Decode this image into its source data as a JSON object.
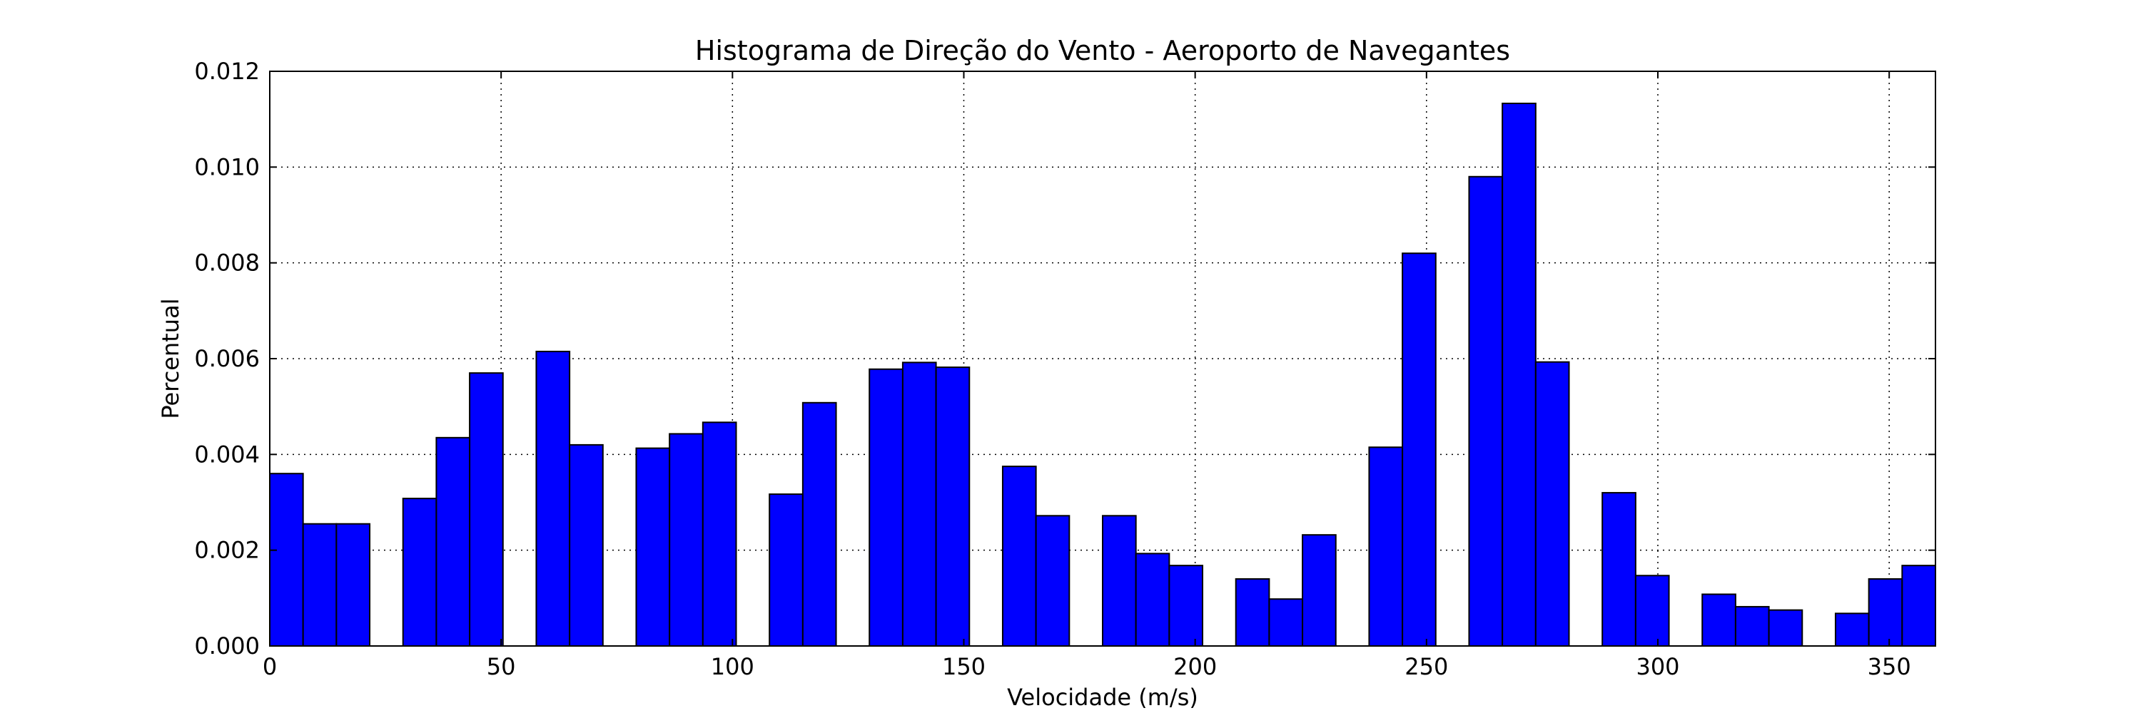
{
  "chart_data": {
    "type": "bar",
    "title": "Histograma de Direção do Vento - Aeroporto de Navegantes",
    "xlabel": "Velocidade (m/s)",
    "ylabel": "Percentual",
    "xlim": [
      0,
      360
    ],
    "ylim": [
      0,
      0.012
    ],
    "x_ticks": [
      0,
      50,
      100,
      150,
      200,
      250,
      300,
      350
    ],
    "y_ticks": [
      0.0,
      0.002,
      0.004,
      0.006,
      0.008,
      0.01,
      0.012
    ],
    "y_tick_labels": [
      "0.000",
      "0.002",
      "0.004",
      "0.006",
      "0.008",
      "0.010",
      "0.012"
    ],
    "grid": true,
    "bar_color": "#0000ff",
    "bin_width": 7.2,
    "bins_start": [
      0,
      7.2,
      14.4,
      21.6,
      28.8,
      36,
      43.2,
      50.4,
      57.6,
      64.8,
      72,
      79.2,
      86.4,
      93.6,
      100.8,
      108,
      115.2,
      122.4,
      129.6,
      136.8,
      144,
      151.2,
      158.4,
      165.6,
      172.8,
      180,
      187.2,
      194.4,
      201.6,
      208.8,
      216,
      223.2,
      230.4,
      237.6,
      244.8,
      252,
      259.2,
      266.4,
      273.6,
      280.8,
      288,
      295.2,
      302.4,
      309.6,
      316.8,
      324,
      331.2,
      338.4,
      345.6,
      352.8
    ],
    "values": [
      0.0036,
      0.00255,
      0.00255,
      0,
      0.00308,
      0.00435,
      0.0057,
      0,
      0.00615,
      0.0042,
      0,
      0.00413,
      0.00443,
      0.00467,
      0,
      0.00317,
      0.00508,
      0,
      0.00578,
      0.00592,
      0.00582,
      0,
      0.00375,
      0.00272,
      0,
      0.00272,
      0.00193,
      0.00168,
      0,
      0.0014,
      0.00098,
      0.00232,
      0,
      0.00415,
      0.0082,
      0,
      0.0098,
      0.01133,
      0.00593,
      0,
      0.0032,
      0.00147,
      0,
      0.00108,
      0.00082,
      0.00075,
      0,
      0.00068,
      0.0014,
      0.00168
    ]
  }
}
